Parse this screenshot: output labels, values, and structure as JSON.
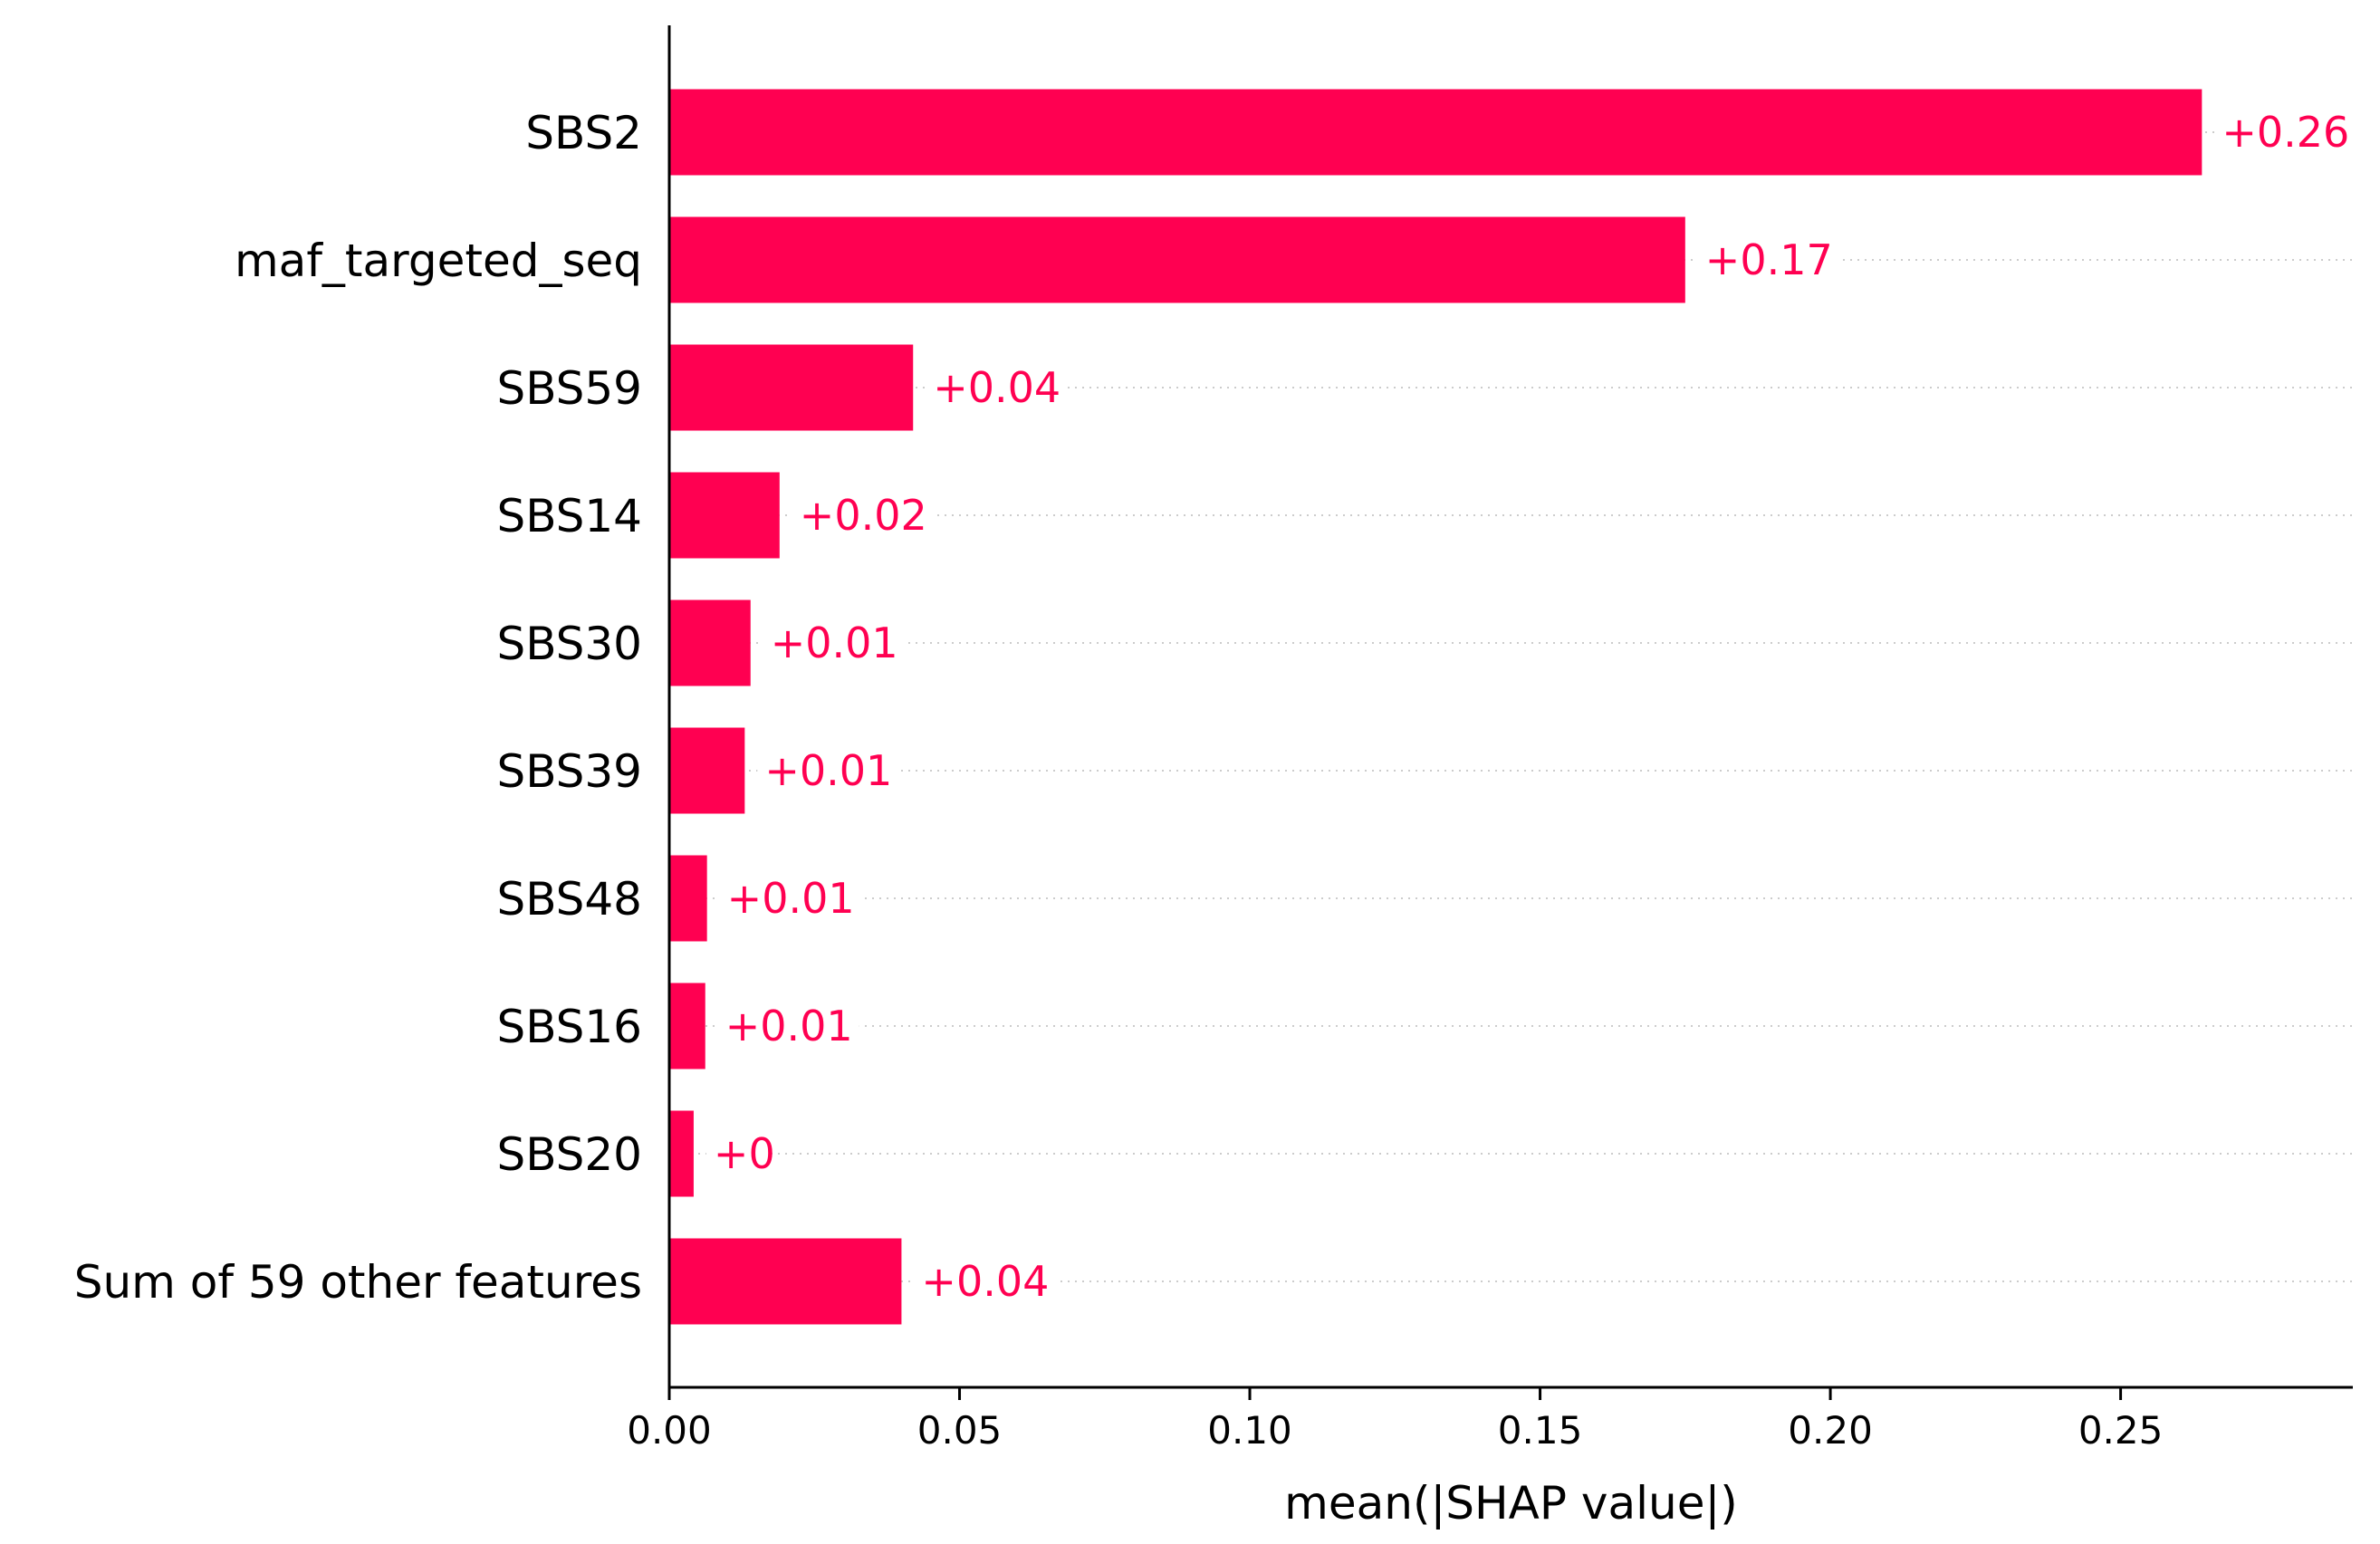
{
  "chart_data": {
    "type": "bar",
    "orientation": "horizontal",
    "categories": [
      "SBS2",
      "maf_targeted_seq",
      "SBS59",
      "SBS14",
      "SBS30",
      "SBS39",
      "SBS48",
      "SBS16",
      "SBS20",
      "Sum of 59 other features"
    ],
    "values": [
      0.264,
      0.175,
      0.042,
      0.019,
      0.014,
      0.013,
      0.0065,
      0.0062,
      0.0042,
      0.04
    ],
    "value_labels": [
      "+0.26",
      "+0.17",
      "+0.04",
      "+0.02",
      "+0.01",
      "+0.01",
      "+0.01",
      "+0.01",
      "+0",
      "+0.04"
    ],
    "xlabel": "mean(|SHAP value|)",
    "ylabel": "",
    "xlim": [
      0,
      0.29
    ],
    "xticks": [
      0.0,
      0.05,
      0.1,
      0.15,
      0.2,
      0.25
    ],
    "xtick_labels": [
      "0.00",
      "0.05",
      "0.10",
      "0.15",
      "0.20",
      "0.25"
    ],
    "grid": "dotted horizontal guide lines per row",
    "legend": "none",
    "colors": {
      "bar": "#ff0051",
      "axis": "#000000",
      "guide": "#cccccc"
    }
  }
}
